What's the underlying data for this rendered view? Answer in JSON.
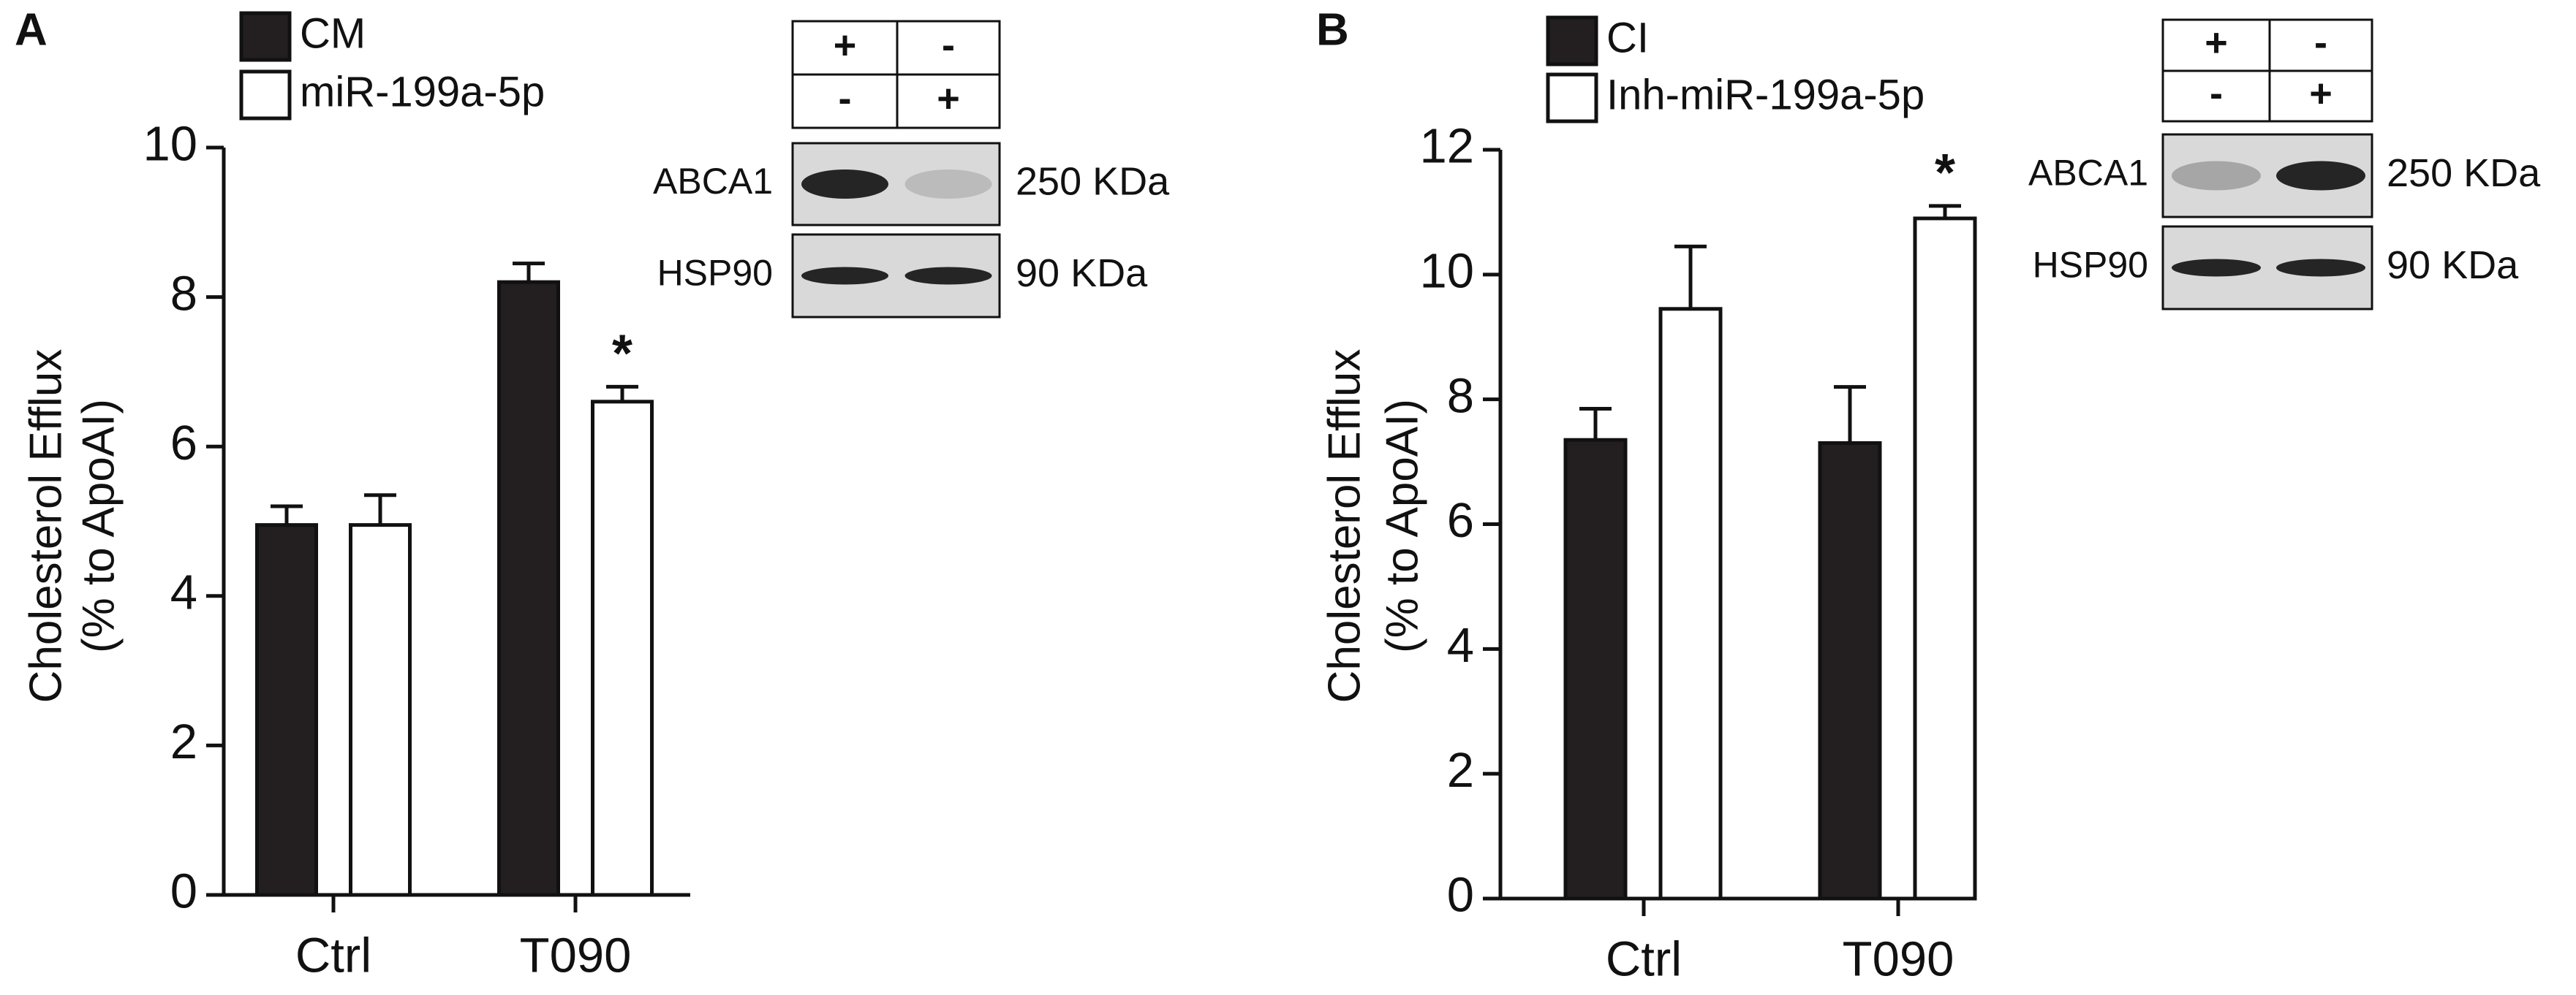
{
  "chart_data": [
    {
      "type": "bar",
      "panel": "A",
      "y_label": [
        "Cholesterol Efflux",
        "(% to ApoAI)"
      ],
      "categories": [
        "Ctrl",
        "T090"
      ],
      "series": [
        {
          "name": "CM",
          "color": "#231f20",
          "values": [
            4.95,
            8.2
          ],
          "errors": [
            0.25,
            0.25
          ]
        },
        {
          "name": "miR-199a-5p",
          "color": "#ffffff",
          "values": [
            4.95,
            6.6
          ],
          "errors": [
            0.4,
            0.2
          ]
        }
      ],
      "ylim": [
        0,
        10
      ],
      "yticks": [
        0,
        2,
        4,
        6,
        8,
        10
      ],
      "annotations": [
        "*"
      ],
      "blot": {
        "header": [
          [
            "+",
            "-"
          ],
          [
            "-",
            "+"
          ]
        ],
        "rows": [
          {
            "protein": "ABCA1",
            "size": "250 KDa"
          },
          {
            "protein": "HSP90",
            "size": "90 KDa"
          }
        ]
      }
    },
    {
      "type": "bar",
      "panel": "B",
      "y_label": [
        "Cholesterol Efflux",
        "(% to ApoAI)"
      ],
      "categories": [
        "Ctrl",
        "T090"
      ],
      "series": [
        {
          "name": "CI",
          "color": "#231f20",
          "values": [
            7.35,
            7.3
          ],
          "errors": [
            0.5,
            0.9
          ]
        },
        {
          "name": "Inh-miR-199a-5p",
          "color": "#ffffff",
          "values": [
            9.45,
            10.9
          ],
          "errors": [
            1.0,
            0.2
          ]
        }
      ],
      "ylim": [
        0,
        12
      ],
      "yticks": [
        0,
        2,
        4,
        6,
        8,
        10,
        12
      ],
      "annotations": [
        "*"
      ],
      "blot": {
        "header": [
          [
            "+",
            "-"
          ],
          [
            "-",
            "+"
          ]
        ],
        "rows": [
          {
            "protein": "ABCA1",
            "size": "250 KDa"
          },
          {
            "protein": "HSP90",
            "size": "90 KDa"
          }
        ]
      }
    }
  ]
}
